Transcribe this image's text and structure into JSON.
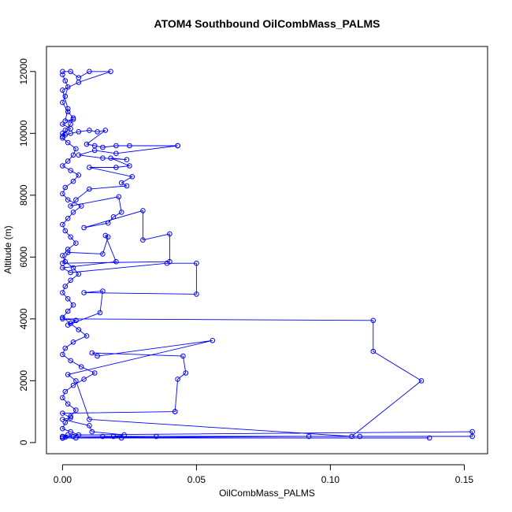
{
  "chart_data": {
    "type": "scatter",
    "title": "ATOM4 Southbound OilCombMass_PALMS",
    "xlabel": "OilCombMass_PALMS",
    "ylabel": "Altitude (m)",
    "xlim": [
      -0.006,
      0.1587
    ],
    "ylim": [
      -360,
      12810
    ],
    "x_ticks": [
      0.0,
      0.05,
      0.1,
      0.15
    ],
    "x_tick_labels": [
      "0.00",
      "0.05",
      "0.10",
      "0.15"
    ],
    "y_ticks": [
      0,
      2000,
      4000,
      6000,
      8000,
      10000,
      12000
    ],
    "y_tick_labels": [
      "0",
      "2000",
      "4000",
      "6000",
      "8000",
      "10000",
      "12000"
    ],
    "grid": false,
    "legend": "none",
    "connected": true,
    "color": "#0000ff",
    "series": [
      {
        "x": [
          0.0,
          0.003,
          0.006,
          0.01,
          0.018,
          0.006,
          0.0,
          0.002,
          0.001,
          0.004,
          0.0,
          0.003,
          0.0,
          0.001,
          0.0,
          0.003,
          0.006,
          0.01,
          0.013,
          0.016,
          0.009,
          0.012,
          0.015,
          0.02,
          0.025,
          0.043,
          0.043,
          0.02,
          0.012,
          0.006,
          0.015,
          0.024,
          0.018,
          0.025,
          0.02,
          0.01,
          0.026,
          0.022,
          0.024,
          0.01,
          0.005,
          0.003,
          0.021,
          0.022,
          0.019,
          0.017,
          0.008,
          0.03,
          0.03,
          0.04,
          0.04,
          0.0,
          0.002,
          0.015,
          0.017,
          0.016,
          0.02,
          0.0,
          0.003,
          0.039,
          0.05,
          0.05,
          0.008,
          0.015,
          0.014,
          0.002,
          0.005,
          0.005,
          0.0,
          0.116,
          0.116,
          0.134,
          0.108,
          0.01,
          0.005,
          0.002,
          0.056,
          0.013,
          0.011,
          0.045,
          0.046,
          0.043,
          0.042,
          0.042,
          0.0,
          0.003,
          0.0,
          0.01,
          0.011,
          0.023,
          0.019,
          0.0,
          0.002,
          0.153,
          0.153,
          0.0,
          0.111,
          0.092,
          0.0,
          0.137,
          0.022,
          0.015,
          0.035,
          0.0,
          0.005,
          0.0
        ],
        "y": [
          12000,
          12000,
          11800,
          12000,
          12000,
          11650,
          11400,
          10800,
          10400,
          10450,
          10300,
          10150,
          10000,
          9950,
          9900,
          10000,
          10050,
          10100,
          10050,
          10100,
          9650,
          9600,
          9550,
          9600,
          9600,
          9600,
          9600,
          9350,
          9450,
          9300,
          9200,
          9150,
          9200,
          8950,
          8900,
          8900,
          8600,
          8400,
          8300,
          8200,
          7850,
          7650,
          7950,
          7450,
          7300,
          7100,
          6950,
          7500,
          6550,
          6750,
          5850,
          5800,
          6150,
          6100,
          6650,
          6700,
          5850,
          5650,
          5500,
          5800,
          5800,
          4800,
          4850,
          4900,
          4200,
          3800,
          3950,
          3950,
          4000,
          3950,
          2950,
          2000,
          200,
          750,
          2000,
          2200,
          3300,
          2800,
          2900,
          2800,
          2250,
          2050,
          1000,
          1000,
          950,
          800,
          750,
          550,
          350,
          250,
          200,
          200,
          250,
          350,
          200,
          200,
          200,
          200,
          150,
          150,
          150,
          200,
          200,
          150,
          150,
          150
        ]
      },
      {
        "x": [
          0.0,
          0.001,
          0.002,
          0.001,
          0.0,
          0.002,
          0.004,
          0.003,
          0.001,
          0.0,
          0.002,
          0.005,
          0.004,
          0.002,
          0.0,
          0.003,
          0.006,
          0.004,
          0.001,
          0.0,
          0.002,
          0.007,
          0.004,
          0.002,
          0.0,
          0.001,
          0.003,
          0.005,
          0.002,
          0.0,
          0.001,
          0.004,
          0.006,
          0.003,
          0.001,
          0.0,
          0.002,
          0.004,
          0.002,
          0.0,
          0.003,
          0.006,
          0.009,
          0.004,
          0.001,
          0.0,
          0.003,
          0.007,
          0.012,
          0.008,
          0.004,
          0.001,
          0.0,
          0.002,
          0.005,
          0.003,
          0.001,
          0.0,
          0.003,
          0.006,
          0.004,
          0.001,
          0.0
        ],
        "y": [
          11900,
          11700,
          11500,
          11200,
          11000,
          10700,
          10500,
          10300,
          10100,
          9850,
          9700,
          9500,
          9300,
          9100,
          8950,
          8800,
          8650,
          8450,
          8250,
          8050,
          7850,
          7650,
          7450,
          7250,
          7050,
          6850,
          6650,
          6450,
          6250,
          6050,
          5850,
          5650,
          5450,
          5250,
          5050,
          4850,
          4650,
          4450,
          4250,
          4050,
          3850,
          3650,
          3450,
          3250,
          3050,
          2850,
          2650,
          2450,
          2250,
          2050,
          1850,
          1650,
          1450,
          1250,
          1050,
          850,
          650,
          450,
          350,
          250,
          200,
          175,
          150
        ]
      }
    ]
  }
}
